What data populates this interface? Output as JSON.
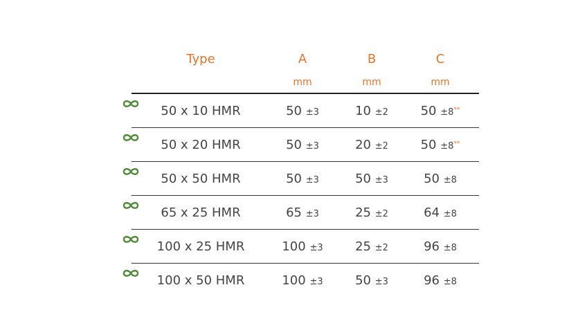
{
  "header": {
    "type_label": "Type",
    "a_label": "A",
    "b_label": "B",
    "c_label": "C",
    "a_unit": "mm",
    "b_unit": "mm",
    "c_unit": "mm"
  },
  "colors": {
    "accent": "#e8742a",
    "text": "#444444",
    "icon_green": "#4f8a3a"
  },
  "row_icon": "infinity-icon",
  "rows": [
    {
      "type": "50 x 10 HMR",
      "a": "50",
      "a_tol": "±3",
      "b": "10",
      "b_tol": "±2",
      "c": "50",
      "c_tol": "±8",
      "c_mark": "**"
    },
    {
      "type": "50 x 20 HMR",
      "a": "50",
      "a_tol": "±3",
      "b": "20",
      "b_tol": "±2",
      "c": "50",
      "c_tol": "±8",
      "c_mark": "**"
    },
    {
      "type": "50 x 50 HMR",
      "a": "50",
      "a_tol": "±3",
      "b": "50",
      "b_tol": "±3",
      "c": "50",
      "c_tol": "±8",
      "c_mark": ""
    },
    {
      "type": "65 x 25 HMR",
      "a": "65",
      "a_tol": "±3",
      "b": "25",
      "b_tol": "±2",
      "c": "64",
      "c_tol": "±8",
      "c_mark": ""
    },
    {
      "type": "100 x 25 HMR",
      "a": "100",
      "a_tol": "±3",
      "b": "25",
      "b_tol": "±2",
      "c": "96",
      "c_tol": "±8",
      "c_mark": ""
    },
    {
      "type": "100 x 50 HMR",
      "a": "100",
      "a_tol": "±3",
      "b": "50",
      "b_tol": "±3",
      "c": "96",
      "c_tol": "±8",
      "c_mark": ""
    }
  ]
}
